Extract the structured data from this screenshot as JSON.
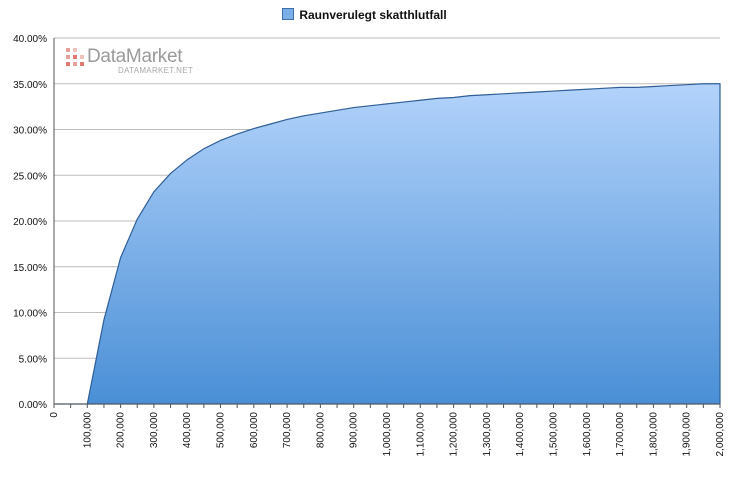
{
  "chart_data": {
    "type": "area",
    "title": "",
    "xlabel": "",
    "ylabel": "",
    "legend": {
      "position": "top-center",
      "entries": [
        "Raunverulegt skatthlutfall"
      ]
    },
    "xlim": [
      0,
      2000000
    ],
    "ylim": [
      0,
      0.4
    ],
    "grid": {
      "horizontal": true,
      "vertical": false
    },
    "y_ticks": [
      "0.00%",
      "5.00%",
      "10.00%",
      "15.00%",
      "20.00%",
      "25.00%",
      "30.00%",
      "35.00%",
      "40.00%"
    ],
    "x_ticks": [
      "0",
      "100,000",
      "200,000",
      "300,000",
      "400,000",
      "500,000",
      "600,000",
      "700,000",
      "800,000",
      "900,000",
      "1,000,000",
      "1,100,000",
      "1,200,000",
      "1,300,000",
      "1,400,000",
      "1,500,000",
      "1,600,000",
      "1,700,000",
      "1,800,000",
      "1,900,000",
      "2,000,000"
    ],
    "series": [
      {
        "name": "Raunverulegt skatthlutfall",
        "color": "#5b9be0",
        "x": [
          0,
          50000,
          100000,
          150000,
          200000,
          250000,
          300000,
          350000,
          400000,
          450000,
          500000,
          550000,
          600000,
          650000,
          700000,
          750000,
          800000,
          850000,
          900000,
          950000,
          1000000,
          1050000,
          1100000,
          1150000,
          1200000,
          1250000,
          1300000,
          1350000,
          1400000,
          1450000,
          1500000,
          1550000,
          1600000,
          1650000,
          1700000,
          1750000,
          1800000,
          1850000,
          1900000,
          1950000,
          2000000
        ],
        "values": [
          0.0,
          0.0,
          0.0,
          0.092,
          0.16,
          0.202,
          0.232,
          0.252,
          0.267,
          0.279,
          0.288,
          0.295,
          0.301,
          0.306,
          0.311,
          0.315,
          0.318,
          0.321,
          0.324,
          0.326,
          0.328,
          0.33,
          0.332,
          0.334,
          0.335,
          0.337,
          0.338,
          0.339,
          0.34,
          0.341,
          0.342,
          0.343,
          0.344,
          0.345,
          0.346,
          0.346,
          0.347,
          0.348,
          0.349,
          0.35,
          0.35
        ]
      }
    ]
  },
  "watermark": {
    "brand": "DataMarket",
    "url": "DATAMARKET.NET"
  }
}
